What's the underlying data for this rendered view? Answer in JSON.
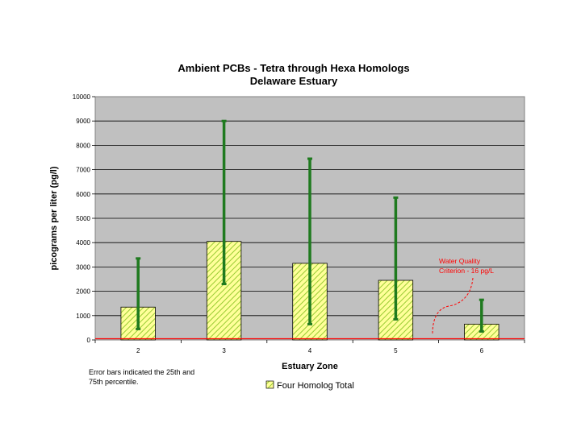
{
  "chart_data": {
    "type": "bar",
    "title": "Ambient PCBs - Tetra through Hexa Homologs",
    "subtitle": "Delaware Estuary",
    "xlabel": "Estuary Zone",
    "ylabel": "picograms per liter (pg/l)",
    "ylim": [
      0,
      10000
    ],
    "yticks": [
      0,
      1000,
      2000,
      3000,
      4000,
      5000,
      6000,
      7000,
      8000,
      9000,
      10000
    ],
    "categories": [
      "2",
      "3",
      "4",
      "5",
      "6"
    ],
    "series": [
      {
        "name": "Four Homolog Total",
        "values": [
          1350,
          4050,
          3150,
          2450,
          650
        ],
        "error_low": [
          450,
          2300,
          650,
          850,
          350
        ],
        "error_high": [
          3350,
          9000,
          7450,
          5850,
          1650
        ]
      }
    ],
    "criterion": {
      "value": 16,
      "label_line1": "Water Quality",
      "label_line2": "Criterion - 16 pg/L"
    },
    "legend_position": "bottom",
    "grid": true,
    "colors": {
      "bar_fill": "#ffff99",
      "bar_hatch": "#99cc33",
      "error_bar": "#1f7a1f",
      "plot_bg": "#c0c0c0",
      "criterion": "#ff0000"
    }
  },
  "note": {
    "line1": "Error bars indicated the 25th and",
    "line2": "75th percentile."
  }
}
